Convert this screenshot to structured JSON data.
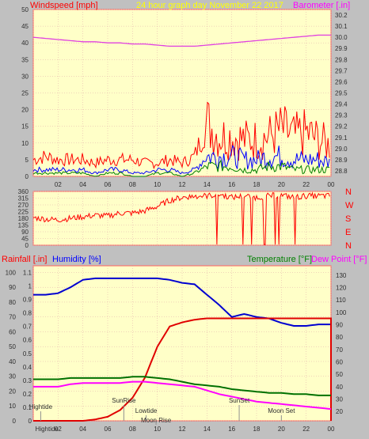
{
  "header": {
    "windspeed_label": "Windspeed [mph]",
    "graph_title": "24 hour graph day   November 22 2017",
    "barometer_label": "Barometer [.in]"
  },
  "labels": {
    "rainfall": "Rainfall [.in]",
    "humidity": "Humidity [%]",
    "temperature": "Temperature [°F]",
    "dewpoint": "Dew Point [°F]"
  },
  "colors": {
    "background": "#c0c0c0",
    "plot_bg": "#ffffc8",
    "grid": "#e0a8a8",
    "windspeed": "#ff0000",
    "wind_avg": "#0000ff",
    "wind_low": "#008000",
    "barometer": "#e040e0",
    "direction": "#ff0000",
    "humidity": "#0000d0",
    "rain": "#e00000",
    "temperature": "#007000",
    "dewpoint": "#ff00ff",
    "title_yellow": "#ffff00"
  },
  "chart_data": [
    {
      "type": "line",
      "title": "24 hour graph day   November 22 2017",
      "xlabel": "",
      "x_ticks": [
        "02",
        "04",
        "06",
        "08",
        "10",
        "12",
        "14",
        "16",
        "18",
        "20",
        "22",
        "00"
      ],
      "left_axis": {
        "label": "Windspeed [mph]",
        "ticks": [
          0,
          5,
          10,
          15,
          20,
          25,
          30,
          35,
          40,
          45,
          50
        ],
        "ylim": [
          0,
          50
        ]
      },
      "right_axis": {
        "label": "Barometer [.in]",
        "ticks": [
          28.8,
          28.9,
          29.0,
          29.1,
          29.2,
          29.3,
          29.4,
          29.5,
          29.6,
          29.7,
          29.8,
          29.9,
          30.0,
          30.1,
          30.2
        ],
        "ylim": [
          28.75,
          30.25
        ]
      },
      "hours": [
        0,
        1,
        2,
        3,
        4,
        5,
        6,
        7,
        8,
        9,
        10,
        11,
        12,
        13,
        14,
        15,
        16,
        17,
        18,
        19,
        20,
        21,
        22,
        23,
        24
      ],
      "series": [
        {
          "name": "Gust",
          "axis": "left",
          "values": [
            5,
            6,
            5,
            5,
            5,
            4,
            5,
            5,
            5,
            4,
            4,
            5,
            4,
            6,
            16,
            12,
            12,
            11,
            11,
            12,
            14,
            12,
            13,
            11,
            9
          ]
        },
        {
          "name": "Average",
          "axis": "left",
          "values": [
            2,
            2,
            2,
            2,
            2,
            1,
            2,
            2,
            1,
            1,
            2,
            2,
            1,
            2,
            6,
            6,
            6,
            5,
            5,
            6,
            6,
            5,
            5,
            5,
            4
          ]
        },
        {
          "name": "Low",
          "axis": "left",
          "values": [
            1,
            1,
            1,
            1,
            1,
            0,
            1,
            1,
            0,
            0,
            1,
            1,
            0,
            1,
            3,
            3,
            3,
            2,
            2,
            3,
            3,
            2,
            2,
            2,
            2
          ]
        },
        {
          "name": "Barometer",
          "axis": "right",
          "values": [
            30.0,
            29.99,
            29.98,
            29.97,
            29.96,
            29.96,
            29.95,
            29.95,
            29.94,
            29.94,
            29.93,
            29.92,
            29.92,
            29.92,
            29.93,
            29.94,
            29.95,
            29.96,
            29.97,
            29.98,
            29.99,
            30.0,
            30.01,
            30.02,
            30.02
          ]
        }
      ]
    },
    {
      "type": "scatter",
      "title": "Wind Direction",
      "x_ticks": [
        "02",
        "04",
        "06",
        "08",
        "10",
        "12",
        "14",
        "16",
        "18",
        "20",
        "22",
        "00"
      ],
      "left_axis": {
        "label": "",
        "ticks": [
          0,
          45,
          90,
          135,
          180,
          225,
          270,
          315,
          360
        ],
        "ylim": [
          0,
          360
        ]
      },
      "right_labels": [
        "N",
        "W",
        "S",
        "E",
        "N"
      ],
      "hours": [
        0,
        1,
        2,
        3,
        4,
        5,
        6,
        7,
        8,
        9,
        10,
        11,
        12,
        13,
        14,
        15,
        16,
        17,
        18,
        19,
        20,
        21,
        22,
        23,
        24
      ],
      "series": [
        {
          "name": "Direction",
          "values": [
            185,
            175,
            170,
            180,
            190,
            200,
            195,
            215,
            215,
            230,
            260,
            300,
            320,
            330,
            330,
            340,
            320,
            330,
            320,
            330,
            335,
            320,
            330,
            330,
            330
          ]
        }
      ]
    },
    {
      "type": "line",
      "title": "",
      "x_ticks": [
        "02",
        "04",
        "06",
        "08",
        "10",
        "12",
        "14",
        "16",
        "18",
        "20",
        "22",
        "00"
      ],
      "left_axis": {
        "label": "Rainfall [.in]",
        "ticks": [
          0,
          0.1,
          0.2,
          0.3,
          0.4,
          0.5,
          0.6,
          0.7,
          0.8,
          0.9,
          1,
          1.1
        ],
        "ylim": [
          0,
          1.15
        ]
      },
      "humidity_axis": {
        "label": "Humidity [%]",
        "ticks": [
          0,
          10,
          20,
          30,
          40,
          50,
          60,
          70,
          80,
          90,
          100
        ],
        "ylim": [
          0,
          104.5
        ]
      },
      "right_axis": {
        "label": "Temperature [°F]",
        "ticks": [
          20,
          30,
          40,
          50,
          60,
          70,
          80,
          90,
          100,
          110,
          120,
          130
        ],
        "ylim": [
          12.5,
          137.5
        ]
      },
      "hours": [
        0,
        1,
        2,
        3,
        4,
        5,
        6,
        7,
        8,
        9,
        10,
        11,
        12,
        13,
        14,
        15,
        16,
        17,
        18,
        19,
        20,
        21,
        22,
        23,
        24
      ],
      "series": [
        {
          "name": "Humidity",
          "axis": "humidity",
          "values": [
            85,
            85,
            86,
            90,
            95,
            96,
            96,
            96,
            96,
            96,
            96,
            95,
            93,
            92,
            85,
            78,
            70,
            72,
            70,
            69,
            66,
            64,
            64,
            65,
            65
          ]
        },
        {
          "name": "Rain",
          "axis": "left",
          "values": [
            0,
            0,
            0,
            0,
            0,
            0.01,
            0.03,
            0.08,
            0.17,
            0.32,
            0.55,
            0.7,
            0.73,
            0.75,
            0.76,
            0.76,
            0.76,
            0.76,
            0.76,
            0.76,
            0.76,
            0.76,
            0.76,
            0.76,
            0.76
          ]
        },
        {
          "name": "Temperature",
          "axis": "right",
          "values": [
            46,
            46,
            46,
            47,
            47,
            47,
            47,
            47,
            48,
            48,
            47,
            46,
            44,
            42,
            41,
            40,
            38,
            37,
            36,
            35,
            35,
            34,
            34,
            33,
            33
          ]
        },
        {
          "name": "Dew Point",
          "axis": "right",
          "values": [
            40,
            40,
            40,
            42,
            43,
            43,
            43,
            43,
            44,
            44,
            43,
            42,
            41,
            40,
            37,
            34,
            32,
            30,
            28,
            27,
            26,
            25,
            24,
            23,
            22
          ]
        }
      ],
      "events": [
        {
          "label": "Hightide",
          "hour": 0.6,
          "row": 0
        },
        {
          "label": "SunRise",
          "hour": 7.3,
          "row": 1
        },
        {
          "label": "Lowtide",
          "hour": 9.1,
          "row": 2
        },
        {
          "label": "Moon Rise",
          "hour": 9.9,
          "row": 3
        },
        {
          "label": "SunSet",
          "hour": 16.6,
          "row": 1
        },
        {
          "label": "Moon Set",
          "hour": 20.0,
          "row": 2
        },
        {
          "label": "Hightide",
          "hour": 1.1,
          "row": 4
        }
      ]
    }
  ]
}
